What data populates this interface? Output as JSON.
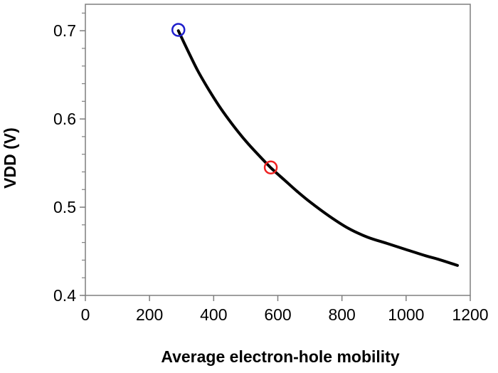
{
  "chart_data": {
    "type": "line",
    "title": "",
    "xlabel": "Average electron-hole mobility",
    "ylabel": "VDD (V)",
    "xlim": [
      0,
      1200
    ],
    "ylim": [
      0.4,
      0.73
    ],
    "x_ticks": [
      0,
      200,
      400,
      600,
      800,
      1000,
      1200
    ],
    "x_tick_labels": [
      "0",
      "200",
      "400",
      "600",
      "800",
      "1000",
      "1200"
    ],
    "y_ticks": [
      0.4,
      0.5,
      0.6,
      0.7
    ],
    "y_tick_labels": [
      "0.4",
      "0.5",
      "0.6",
      "0.7"
    ],
    "y_minor_step": 0.02,
    "grid": false,
    "legend": "none",
    "series": [
      {
        "type": "line",
        "color": "#000000",
        "x": [
          290,
          320,
          350,
          380,
          420,
          460,
          500,
          540,
          580,
          620,
          660,
          700,
          760,
          820,
          880,
          940,
          1000,
          1060,
          1100,
          1160
        ],
        "y": [
          0.7,
          0.677,
          0.655,
          0.636,
          0.613,
          0.593,
          0.575,
          0.559,
          0.544,
          0.531,
          0.518,
          0.506,
          0.49,
          0.476,
          0.466,
          0.459,
          0.452,
          0.445,
          0.441,
          0.434
        ]
      },
      {
        "type": "scatter",
        "marker": "open-circle",
        "color": "#1f1fcc",
        "x": [
          290
        ],
        "y": [
          0.701
        ]
      },
      {
        "type": "scatter",
        "marker": "open-circle",
        "color": "#ee2222",
        "x": [
          578
        ],
        "y": [
          0.545
        ]
      }
    ]
  }
}
